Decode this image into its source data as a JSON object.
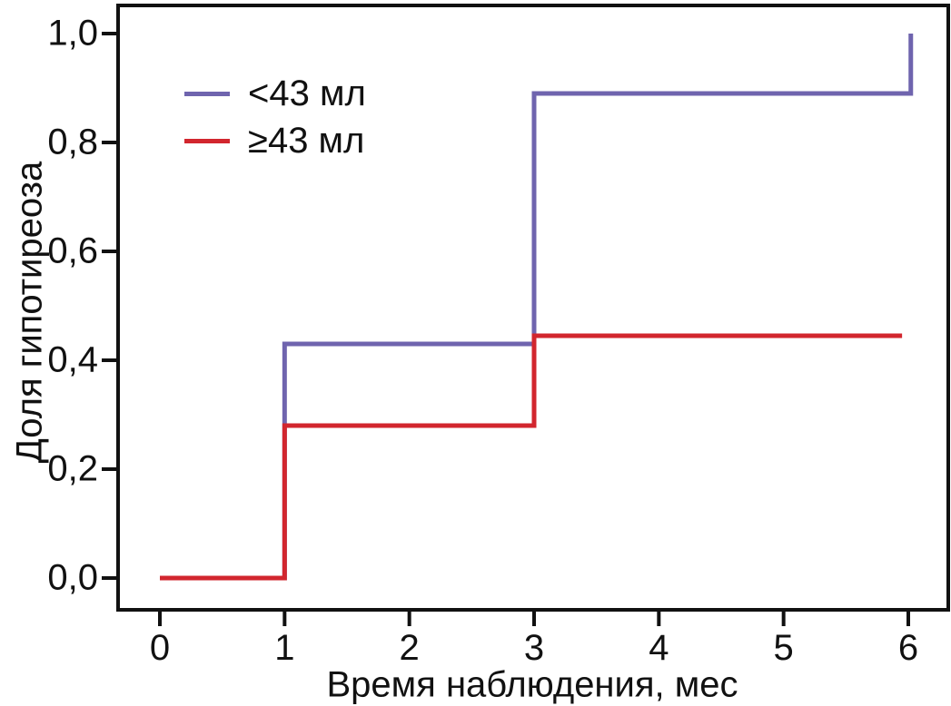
{
  "chart_data": {
    "type": "line",
    "subtype": "step",
    "title": "",
    "xlabel": "Время наблюдения, мес",
    "ylabel": "Доля гипотиреоза",
    "xlim": [
      -0.34,
      6.33
    ],
    "ylim": [
      -0.06,
      1.06
    ],
    "grid": false,
    "legend_position": "upper-left-inside",
    "x_ticks": [
      0,
      1,
      2,
      3,
      4,
      5,
      6
    ],
    "x_tick_labels": [
      "0",
      "1",
      "2",
      "3",
      "4",
      "5",
      "6"
    ],
    "y_ticks": [
      0.0,
      0.2,
      0.4,
      0.6,
      0.8,
      1.0
    ],
    "y_tick_labels": [
      "0,0",
      "0,2",
      "0,4",
      "0,6",
      "0,8",
      "1,0"
    ],
    "series": [
      {
        "name": "<43 мл",
        "color": "#6f64ae",
        "points": [
          [
            0,
            0.0
          ],
          [
            1,
            0.0
          ],
          [
            1,
            0.43
          ],
          [
            3,
            0.43
          ],
          [
            3,
            0.89
          ],
          [
            6.02,
            0.89
          ],
          [
            6.02,
            1.0
          ]
        ]
      },
      {
        "name": "≥43 мл",
        "color": "#d2262e",
        "points": [
          [
            0,
            0.0
          ],
          [
            1,
            0.0
          ],
          [
            1,
            0.28
          ],
          [
            3,
            0.28
          ],
          [
            3,
            0.445
          ],
          [
            5.95,
            0.445
          ]
        ]
      }
    ]
  },
  "frame_color": "#111111"
}
